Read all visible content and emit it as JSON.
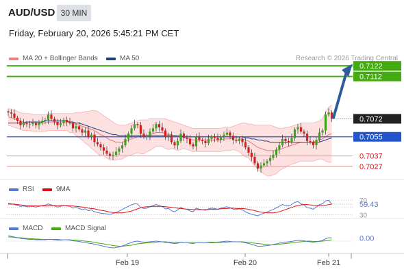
{
  "header": {
    "symbol": "AUD/USD",
    "timeframe": "30 MIN",
    "datetime": "Friday, February 20, 2026 5:45:21 PM CET"
  },
  "legends": {
    "main": [
      {
        "label": "MA 20 + Bollinger Bands",
        "color": "#f08080"
      },
      {
        "label": "MA 50",
        "color": "#1e3f7a"
      }
    ],
    "rsi": [
      {
        "label": "RSI",
        "color": "#5577cc"
      },
      {
        "label": "9MA",
        "color": "#dd1111"
      }
    ],
    "macd": [
      {
        "label": "MACD",
        "color": "#5577cc"
      },
      {
        "label": "MACD Signal",
        "color": "#44aa11"
      }
    ]
  },
  "copyright": "Research © 2026 Trading Central",
  "chart_data": [
    {
      "type": "candlestick",
      "name": "price",
      "x_labels": [
        "Feb 19",
        "Feb 20",
        "Feb 21"
      ],
      "ylim": [
        7016,
        7126
      ],
      "levels": [
        {
          "value": "0.7122",
          "color": "#44aa11",
          "kind": "resistance",
          "text_color": "#ffffff"
        },
        {
          "value": "0.7112",
          "color": "#44aa11",
          "kind": "resistance",
          "text_color": "#ffffff"
        },
        {
          "value": "0.7072",
          "color": "#222222",
          "kind": "current",
          "text_color": "#ffffff"
        },
        {
          "value": "0.7055",
          "color": "#2255cc",
          "kind": "pivot",
          "text_color": "#ffffff"
        },
        {
          "value": "0.7037",
          "color": "#f4a0a0",
          "kind": "support",
          "text_color": "#dd1111"
        },
        {
          "value": "0.7027",
          "color": "#f4a0a0",
          "kind": "support",
          "text_color": "#dd1111"
        }
      ],
      "close": [
        7078,
        7077,
        7073,
        7070,
        7066,
        7068,
        7067,
        7067,
        7068,
        7066,
        7068,
        7070,
        7071,
        7076,
        7072,
        7069,
        7066,
        7068,
        7071,
        7069,
        7068,
        7063,
        7065,
        7062,
        7059,
        7061,
        7055,
        7057,
        7050,
        7048,
        7045,
        7042,
        7039,
        7037,
        7038,
        7041,
        7044,
        7047,
        7053,
        7058,
        7063,
        7067,
        7066,
        7058,
        7055,
        7056,
        7060,
        7063,
        7067,
        7064,
        7061,
        7055,
        7056,
        7050,
        7047,
        7051,
        7058,
        7054,
        7053,
        7048,
        7046,
        7055,
        7052,
        7051,
        7049,
        7053,
        7055,
        7054,
        7052,
        7055,
        7057,
        7059,
        7056,
        7052,
        7051,
        7053,
        7050,
        7045,
        7040,
        7036,
        7030,
        7025,
        7028,
        7030,
        7032,
        7035,
        7038,
        7043,
        7047,
        7053,
        7051,
        7050,
        7054,
        7062,
        7064,
        7060,
        7058,
        7051,
        7050,
        7047,
        7052,
        7059,
        7061,
        7076,
        7078,
        7072
      ],
      "bb_mid": [
        7074,
        7073,
        7072,
        7071,
        7070,
        7069,
        7069,
        7069,
        7068,
        7068,
        7068,
        7068,
        7068,
        7069,
        7069,
        7069,
        7069,
        7069,
        7069,
        7069,
        7068,
        7068,
        7067,
        7066,
        7065,
        7064,
        7063,
        7062,
        7061,
        7059,
        7057,
        7056,
        7054,
        7052,
        7051,
        7050,
        7050,
        7050,
        7051,
        7052,
        7053,
        7054,
        7055,
        7055,
        7055,
        7056,
        7057,
        7058,
        7059,
        7059,
        7059,
        7058,
        7057,
        7057,
        7056,
        7055,
        7055,
        7055,
        7054,
        7053,
        7052,
        7052,
        7052,
        7052,
        7052,
        7052,
        7052,
        7052,
        7052,
        7052,
        7053,
        7053,
        7053,
        7054,
        7054,
        7054,
        7053,
        7052,
        7051,
        7049,
        7047,
        7045,
        7044,
        7043,
        7042,
        7042,
        7042,
        7042,
        7043,
        7044,
        7045,
        7046,
        7047,
        7048,
        7049,
        7050,
        7050,
        7050,
        7050,
        7050,
        7051,
        7052,
        7053,
        7055,
        7057,
        7058
      ],
      "bb_upper": [
        7082,
        7081,
        7080,
        7079,
        7078,
        7077,
        7077,
        7077,
        7076,
        7076,
        7076,
        7076,
        7076,
        7077,
        7077,
        7077,
        7077,
        7077,
        7077,
        7077,
        7077,
        7077,
        7078,
        7078,
        7078,
        7079,
        7079,
        7080,
        7080,
        7079,
        7077,
        7075,
        7073,
        7071,
        7069,
        7067,
        7066,
        7066,
        7066,
        7067,
        7068,
        7069,
        7070,
        7071,
        7071,
        7071,
        7072,
        7072,
        7072,
        7072,
        7072,
        7072,
        7071,
        7070,
        7069,
        7068,
        7067,
        7066,
        7065,
        7064,
        7063,
        7063,
        7063,
        7063,
        7063,
        7063,
        7063,
        7063,
        7063,
        7063,
        7064,
        7064,
        7064,
        7065,
        7066,
        7067,
        7068,
        7068,
        7067,
        7067,
        7066,
        7066,
        7066,
        7066,
        7066,
        7066,
        7065,
        7064,
        7063,
        7063,
        7064,
        7064,
        7065,
        7066,
        7067,
        7068,
        7068,
        7068,
        7068,
        7068,
        7069,
        7070,
        7072,
        7078,
        7083,
        7085
      ],
      "bb_lower": [
        7066,
        7065,
        7064,
        7063,
        7062,
        7061,
        7061,
        7061,
        7060,
        7060,
        7060,
        7060,
        7060,
        7061,
        7061,
        7061,
        7061,
        7061,
        7061,
        7061,
        7059,
        7059,
        7056,
        7054,
        7052,
        7049,
        7047,
        7044,
        7042,
        7039,
        7037,
        7037,
        7035,
        7033,
        7033,
        7033,
        7034,
        7034,
        7036,
        7037,
        7038,
        7039,
        7040,
        7039,
        7039,
        7041,
        7042,
        7044,
        7046,
        7046,
        7046,
        7044,
        7043,
        7044,
        7043,
        7042,
        7043,
        7044,
        7043,
        7042,
        7041,
        7041,
        7041,
        7041,
        7041,
        7041,
        7041,
        7041,
        7041,
        7041,
        7042,
        7042,
        7042,
        7043,
        7042,
        7041,
        7038,
        7036,
        7035,
        7031,
        7028,
        7024,
        7022,
        7020,
        7018,
        7018,
        7019,
        7020,
        7023,
        7025,
        7026,
        7028,
        7029,
        7030,
        7031,
        7032,
        7032,
        7032,
        7032,
        7032,
        7033,
        7034,
        7034,
        7032,
        7031,
        7031
      ],
      "ma50": [
        7068,
        7068,
        7068,
        7068,
        7068,
        7068,
        7069,
        7069,
        7069,
        7069,
        7069,
        7069,
        7070,
        7070,
        7070,
        7070,
        7070,
        7070,
        7070,
        7070,
        7069,
        7069,
        7068,
        7068,
        7067,
        7066,
        7065,
        7064,
        7063,
        7062,
        7061,
        7060,
        7059,
        7058,
        7057,
        7057,
        7056,
        7056,
        7056,
        7056,
        7056,
        7056,
        7056,
        7056,
        7056,
        7056,
        7056,
        7056,
        7056,
        7056,
        7056,
        7056,
        7056,
        7056,
        7056,
        7056,
        7056,
        7055,
        7055,
        7055,
        7055,
        7055,
        7055,
        7055,
        7055,
        7055,
        7055,
        7055,
        7055,
        7055,
        7055,
        7055,
        7055,
        7055,
        7055,
        7055,
        7055,
        7054,
        7054,
        7053,
        7053,
        7052,
        7052,
        7051,
        7051,
        7050,
        7050,
        7050,
        7050,
        7050,
        7050,
        7050,
        7050,
        7050,
        7050,
        7050,
        7050,
        7050,
        7050,
        7050,
        7050,
        7050,
        7051,
        7052,
        7053,
        7054
      ],
      "forecast": {
        "from": 7072,
        "to": "0.7122"
      }
    },
    {
      "type": "line",
      "name": "rsi",
      "levels": [
        70,
        50,
        30
      ],
      "ylim": [
        25,
        78
      ],
      "last_value": "59.43",
      "level_labels": [
        "70",
        "30"
      ],
      "series": [
        {
          "name": "RSI",
          "values": [
            62,
            60,
            58,
            55,
            53,
            54,
            52,
            52,
            53,
            51,
            53,
            55,
            56,
            60,
            57,
            54,
            51,
            53,
            56,
            54,
            53,
            48,
            50,
            47,
            44,
            46,
            41,
            43,
            38,
            36,
            34,
            33,
            32,
            31,
            33,
            36,
            40,
            44,
            49,
            53,
            57,
            60,
            59,
            50,
            47,
            48,
            52,
            55,
            58,
            55,
            52,
            46,
            47,
            41,
            38,
            43,
            50,
            46,
            45,
            40,
            38,
            48,
            45,
            44,
            42,
            46,
            48,
            47,
            45,
            48,
            50,
            52,
            49,
            45,
            44,
            46,
            43,
            38,
            34,
            31,
            29,
            27,
            31,
            34,
            37,
            41,
            44,
            49,
            53,
            58,
            55,
            54,
            58,
            64,
            66,
            60,
            57,
            49,
            48,
            45,
            51,
            58,
            60,
            68,
            70,
            59
          ]
        },
        {
          "name": "9MA",
          "values": [
            59,
            59,
            59,
            58,
            57,
            56,
            55,
            55,
            54,
            54,
            54,
            54,
            54,
            54,
            55,
            55,
            55,
            55,
            55,
            55,
            54,
            54,
            53,
            52,
            51,
            50,
            48,
            47,
            46,
            44,
            42,
            41,
            39,
            37,
            36,
            35,
            35,
            35,
            36,
            38,
            40,
            43,
            46,
            49,
            51,
            52,
            52,
            53,
            53,
            53,
            53,
            52,
            51,
            50,
            49,
            48,
            47,
            46,
            45,
            45,
            44,
            44,
            44,
            44,
            44,
            44,
            45,
            45,
            45,
            46,
            47,
            47,
            48,
            48,
            47,
            47,
            47,
            46,
            45,
            43,
            41,
            39,
            37,
            36,
            35,
            35,
            35,
            36,
            38,
            41,
            44,
            47,
            50,
            53,
            55,
            57,
            58,
            58,
            57,
            56,
            55,
            55,
            55,
            56,
            58,
            59
          ]
        }
      ]
    },
    {
      "type": "line",
      "name": "macd",
      "levels": [
        0
      ],
      "ylim": [
        -16,
        12
      ],
      "last_value": "0.00",
      "series": [
        {
          "name": "MACD",
          "values": [
            8,
            7,
            6,
            5,
            4,
            3.5,
            3,
            2.5,
            2.5,
            2,
            2,
            2,
            2,
            2.5,
            2.5,
            2,
            1.5,
            1.5,
            2,
            2,
            1.5,
            0.5,
            0,
            -0.5,
            -1.5,
            -2,
            -3,
            -3.5,
            -4.5,
            -5.5,
            -6.5,
            -7.5,
            -8.5,
            -9.5,
            -10,
            -9.5,
            -8.5,
            -7,
            -5.5,
            -3.5,
            -2,
            -0.5,
            0,
            -1,
            -1.5,
            -1.5,
            -1,
            -0.5,
            0,
            -0.5,
            -1,
            -2,
            -2,
            -3,
            -3.5,
            -3,
            -2,
            -2.5,
            -2.5,
            -3,
            -3.5,
            -2.5,
            -2.5,
            -2.5,
            -2.5,
            -2,
            -1.5,
            -1.5,
            -1.5,
            -1,
            -0.5,
            0,
            -0.5,
            -1,
            -1,
            -1,
            -1.5,
            -2.5,
            -3.5,
            -4.5,
            -6,
            -7.5,
            -7.5,
            -7,
            -6.5,
            -6,
            -5,
            -4,
            -3,
            -2,
            -1.5,
            -1,
            -0.5,
            0.5,
            1,
            1,
            0.5,
            -0.5,
            -1,
            -1.5,
            -1,
            0,
            1,
            3.5,
            5,
            4.5
          ]
        },
        {
          "name": "MACD Signal",
          "values": [
            6,
            6,
            5.5,
            5,
            5,
            4.5,
            4,
            3.5,
            3.5,
            3,
            3,
            2.5,
            2.5,
            2.5,
            2.5,
            2.5,
            2.5,
            2,
            2,
            2,
            2,
            1.5,
            1.5,
            1,
            0.5,
            0,
            -0.5,
            -1,
            -2,
            -2.5,
            -3.5,
            -4,
            -5,
            -5.5,
            -6.5,
            -7,
            -7.5,
            -7.5,
            -7,
            -6.5,
            -6,
            -5,
            -4,
            -3.5,
            -3,
            -2.5,
            -2,
            -2,
            -1.5,
            -1,
            -1,
            -1,
            -1.5,
            -1.5,
            -2,
            -2,
            -2,
            -2.5,
            -2.5,
            -2.5,
            -2.5,
            -2.5,
            -2.5,
            -2.5,
            -2.5,
            -2.5,
            -2.5,
            -2,
            -2,
            -2,
            -1.5,
            -1.5,
            -1,
            -1,
            -1,
            -1,
            -1,
            -1.5,
            -2,
            -2.5,
            -3,
            -3.5,
            -4,
            -4.5,
            -5,
            -5.5,
            -5.5,
            -5,
            -4.5,
            -4,
            -3.5,
            -3,
            -2.5,
            -2,
            -1.5,
            -1,
            -0.5,
            0,
            0,
            -0.5,
            -0.5,
            -0.5,
            0,
            0.5,
            1,
            2
          ]
        }
      ]
    }
  ]
}
